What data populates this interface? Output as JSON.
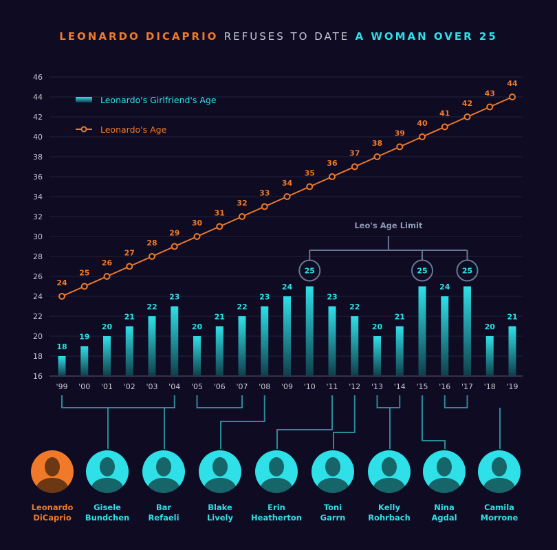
{
  "title": {
    "part1": "LEONARDO DICAPRIO",
    "part2": "REFUSES TO DATE",
    "part3": "A WOMAN OVER 25"
  },
  "colors": {
    "background": "#0e0b22",
    "leo": "#f07a2a",
    "girlfriend": "#2fe0e8",
    "connector": "#2a8c9a",
    "limit": "#6b7894",
    "axis_text": "#c9c9d6"
  },
  "chart_data": {
    "type": "bar",
    "categories": [
      "'99",
      "'00",
      "'01",
      "'02",
      "'03",
      "'04",
      "'05",
      "'06",
      "'07",
      "'08",
      "'09",
      "'10",
      "'11",
      "'12",
      "'13",
      "'14",
      "'15",
      "'16",
      "'17",
      "'18",
      "'19"
    ],
    "series": [
      {
        "name": "Leonardo's Girlfriend's Age",
        "type": "bar",
        "values": [
          18,
          19,
          20,
          21,
          22,
          23,
          20,
          21,
          22,
          23,
          24,
          25,
          23,
          22,
          20,
          21,
          25,
          24,
          25,
          20,
          21
        ]
      },
      {
        "name": "Leonardo's Age",
        "type": "line",
        "values": [
          24,
          25,
          26,
          27,
          28,
          29,
          30,
          31,
          32,
          33,
          34,
          35,
          36,
          37,
          38,
          39,
          40,
          41,
          42,
          43,
          44
        ]
      }
    ],
    "ylim": [
      16,
      46
    ],
    "yticks": [
      16,
      18,
      20,
      22,
      24,
      26,
      28,
      30,
      32,
      34,
      36,
      38,
      40,
      42,
      44,
      46
    ],
    "grid": true,
    "legend_position": "top-left",
    "annotation": "Leo's Age Limit",
    "highlighted_values": [
      25
    ]
  },
  "people": [
    {
      "name_line1": "Leonardo",
      "name_line2": "DiCaprio",
      "is_leo": true
    },
    {
      "name_line1": "Gisele",
      "name_line2": "Bundchen",
      "is_leo": false
    },
    {
      "name_line1": "Bar",
      "name_line2": "Refaeli",
      "is_leo": false
    },
    {
      "name_line1": "Blake",
      "name_line2": "Lively",
      "is_leo": false
    },
    {
      "name_line1": "Erin",
      "name_line2": "Heatherton",
      "is_leo": false
    },
    {
      "name_line1": "Toni",
      "name_line2": "Garrn",
      "is_leo": false
    },
    {
      "name_line1": "Kelly",
      "name_line2": "Rohrbach",
      "is_leo": false
    },
    {
      "name_line1": "Nina",
      "name_line2": "Agdal",
      "is_leo": false
    },
    {
      "name_line1": "Camila",
      "name_line2": "Morrone",
      "is_leo": false
    }
  ]
}
